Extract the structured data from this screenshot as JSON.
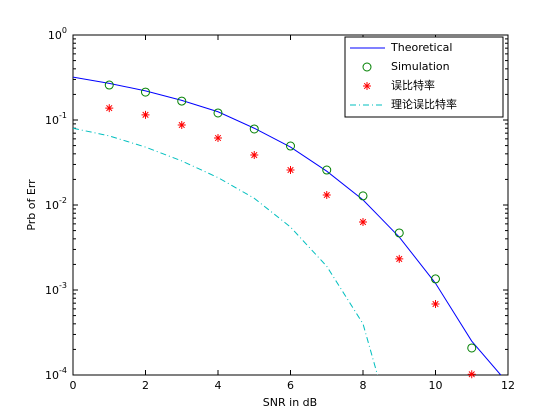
{
  "chart_data": {
    "type": "line",
    "xlabel": "SNR in dB",
    "ylabel": "Prb of Err",
    "xlim": [
      0,
      12
    ],
    "xticks": [
      0,
      2,
      4,
      6,
      8,
      10,
      12
    ],
    "ylim": [
      0.0001,
      1
    ],
    "yscale": "log",
    "yticks": [
      {
        "value": 0.0001,
        "label": "10^-4"
      },
      {
        "value": 0.001,
        "label": "10^-3"
      },
      {
        "value": 0.01,
        "label": "10^-2"
      },
      {
        "value": 0.1,
        "label": "10^-1"
      },
      {
        "value": 1,
        "label": "10^0"
      }
    ],
    "legend": "northeast",
    "series": [
      {
        "name": "Theoretical",
        "color": "#0000ff",
        "linestyle": "solid",
        "marker": "none",
        "x": [
          0,
          1,
          2,
          3,
          4,
          5,
          6,
          7,
          8,
          9,
          10,
          11,
          11.8
        ],
        "values": [
          0.32,
          0.27,
          0.22,
          0.17,
          0.125,
          0.08,
          0.048,
          0.025,
          0.0115,
          0.0042,
          0.0012,
          0.00025,
          0.0001
        ]
      },
      {
        "name": "Simulation",
        "color": "#008000",
        "linestyle": "none",
        "marker": "circle",
        "x": [
          1,
          2,
          3,
          4,
          5,
          6,
          7,
          8,
          9,
          10,
          11
        ],
        "values": [
          0.258,
          0.213,
          0.167,
          0.121,
          0.0784,
          0.0494,
          0.0258,
          0.0128,
          0.00469,
          0.00135,
          0.000208
        ]
      },
      {
        "name": "误比特率",
        "color": "#ff0000",
        "linestyle": "none",
        "marker": "star",
        "x": [
          1,
          2,
          3,
          4,
          5,
          6,
          7,
          8,
          9,
          10,
          11
        ],
        "values": [
          0.138,
          0.115,
          0.0873,
          0.0614,
          0.0387,
          0.0258,
          0.0131,
          0.0063,
          0.00232,
          0.000684,
          0.000102
        ]
      },
      {
        "name": "理论误比特率",
        "color": "#00bfbf",
        "linestyle": "dashdot",
        "marker": "none",
        "x": [
          0,
          1,
          2,
          3,
          4,
          5,
          6,
          7,
          8,
          8.4
        ],
        "values": [
          0.08,
          0.065,
          0.048,
          0.033,
          0.021,
          0.012,
          0.0055,
          0.0019,
          0.0004,
          0.0001
        ]
      }
    ]
  }
}
